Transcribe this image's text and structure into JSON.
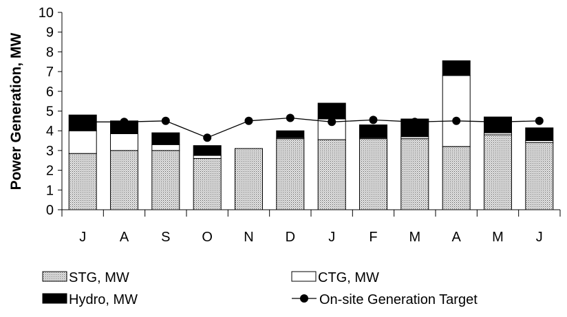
{
  "chart_data": {
    "type": "bar",
    "stacked": true,
    "categories": [
      "J",
      "A",
      "S",
      "O",
      "N",
      "D",
      "J",
      "F",
      "M",
      "A",
      "M",
      "J"
    ],
    "series": [
      {
        "name": "STG, MW",
        "kind": "bar",
        "fill": "dotted-gray",
        "values": [
          2.85,
          3.0,
          3.0,
          2.6,
          3.1,
          3.6,
          3.55,
          3.6,
          3.6,
          3.2,
          3.8,
          3.4
        ]
      },
      {
        "name": "CTG, MW",
        "kind": "bar",
        "fill": "#ffffff",
        "values": [
          1.15,
          0.85,
          0.3,
          0.15,
          0.0,
          0.05,
          1.05,
          0.05,
          0.1,
          3.6,
          0.1,
          0.1
        ]
      },
      {
        "name": "Hydro, MW",
        "kind": "bar",
        "fill": "#000000",
        "values": [
          0.8,
          0.65,
          0.6,
          0.5,
          0.0,
          0.35,
          0.8,
          0.65,
          0.9,
          0.75,
          0.8,
          0.65
        ]
      },
      {
        "name": "On-site Generation Target",
        "kind": "line",
        "color": "#000000",
        "values": [
          4.45,
          4.45,
          4.5,
          3.65,
          4.5,
          4.65,
          4.45,
          4.55,
          4.45,
          4.5,
          4.45,
          4.5
        ]
      }
    ],
    "ylabel": "Power Generation, MW",
    "xlabel": "",
    "ylim": [
      0,
      10
    ],
    "yticks": [
      0,
      1,
      2,
      3,
      4,
      5,
      6,
      7,
      8,
      9,
      10
    ],
    "grid": false,
    "legend_position": "bottom"
  }
}
